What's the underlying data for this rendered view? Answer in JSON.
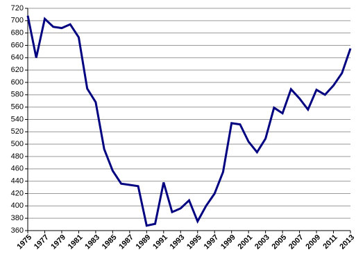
{
  "chart_data": {
    "type": "line",
    "x": [
      1975,
      1976,
      1977,
      1978,
      1979,
      1980,
      1981,
      1982,
      1983,
      1984,
      1985,
      1986,
      1987,
      1988,
      1989,
      1990,
      1991,
      1992,
      1993,
      1994,
      1995,
      1996,
      1997,
      1998,
      1999,
      2000,
      2001,
      2002,
      2003,
      2004,
      2005,
      2006,
      2007,
      2008,
      2009,
      2010,
      2011,
      2012,
      2013
    ],
    "series": [
      {
        "name": null,
        "color": "#000080",
        "values": [
          708,
          640,
          703,
          690,
          688,
          694,
          673,
          590,
          568,
          492,
          457,
          436,
          434,
          432,
          368,
          371,
          438,
          390,
          396,
          409,
          375,
          400,
          420,
          455,
          534,
          532,
          504,
          487,
          509,
          559,
          550,
          589,
          574,
          556,
          588,
          580,
          595,
          615,
          655
        ]
      }
    ],
    "xlim": [
      1975,
      2013
    ],
    "xticks": [
      1975,
      1977,
      1979,
      1981,
      1983,
      1985,
      1987,
      1989,
      1991,
      1993,
      1995,
      1997,
      1999,
      2001,
      2003,
      2005,
      2007,
      2009,
      2011,
      2013
    ],
    "ylim": [
      360,
      720
    ],
    "yticks": [
      360,
      380,
      400,
      420,
      440,
      460,
      480,
      500,
      520,
      540,
      560,
      580,
      600,
      620,
      640,
      660,
      680,
      700,
      720
    ],
    "grid": true
  }
}
